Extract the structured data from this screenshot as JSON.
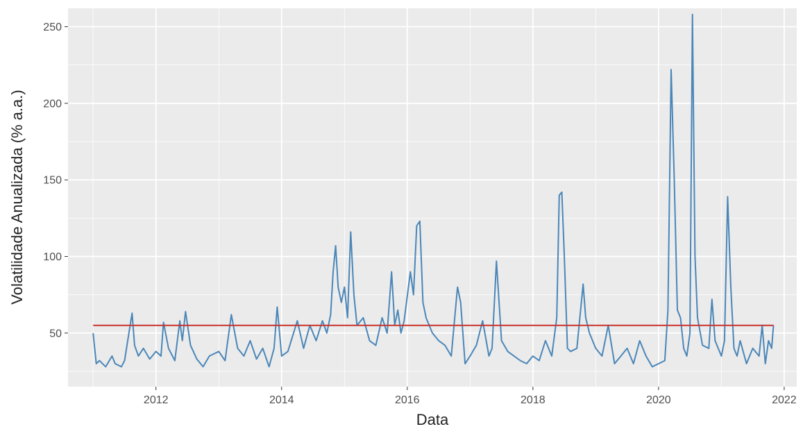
{
  "chart_data": {
    "type": "line",
    "title": "",
    "xlabel": "Data",
    "ylabel": "Volatilidade Anualizada (% a.a.)",
    "xlim": [
      2010.6,
      2022.2
    ],
    "ylim": [
      15,
      262
    ],
    "x_ticks": [
      2012,
      2014,
      2016,
      2018,
      2020,
      2022
    ],
    "y_ticks": [
      50,
      100,
      150,
      200,
      250
    ],
    "grid": true,
    "legend": "none",
    "colors": {
      "panel": "#ebebeb",
      "grid": "#ffffff",
      "series": "#4a86b8",
      "mean": "#c8322d",
      "text": "#4d4d4d"
    },
    "series": [
      {
        "x": [
          2011.0,
          2011.05,
          2011.1,
          2011.2,
          2011.3,
          2011.35,
          2011.45,
          2011.5,
          2011.55,
          2011.62,
          2011.66,
          2011.72,
          2011.8,
          2011.9,
          2012.0,
          2012.08,
          2012.12,
          2012.2,
          2012.3,
          2012.38,
          2012.42,
          2012.47,
          2012.55,
          2012.65,
          2012.75,
          2012.85,
          2013.0,
          2013.1,
          2013.2,
          2013.3,
          2013.4,
          2013.5,
          2013.6,
          2013.7,
          2013.8,
          2013.88,
          2013.93,
          2014.0,
          2014.1,
          2014.25,
          2014.35,
          2014.45,
          2014.55,
          2014.65,
          2014.72,
          2014.78,
          2014.82,
          2014.86,
          2014.9,
          2014.95,
          2015.0,
          2015.05,
          2015.1,
          2015.15,
          2015.2,
          2015.3,
          2015.4,
          2015.5,
          2015.6,
          2015.68,
          2015.75,
          2015.8,
          2015.85,
          2015.9,
          2015.95,
          2016.05,
          2016.1,
          2016.15,
          2016.2,
          2016.25,
          2016.3,
          2016.4,
          2016.5,
          2016.6,
          2016.7,
          2016.8,
          2016.85,
          2016.92,
          2017.0,
          2017.1,
          2017.2,
          2017.3,
          2017.35,
          2017.42,
          2017.5,
          2017.6,
          2017.7,
          2017.8,
          2017.9,
          2018.0,
          2018.1,
          2018.2,
          2018.3,
          2018.38,
          2018.42,
          2018.46,
          2018.5,
          2018.55,
          2018.6,
          2018.7,
          2018.8,
          2018.84,
          2018.9,
          2019.0,
          2019.1,
          2019.2,
          2019.3,
          2019.4,
          2019.5,
          2019.6,
          2019.7,
          2019.8,
          2019.9,
          2020.0,
          2020.1,
          2020.15,
          2020.2,
          2020.25,
          2020.3,
          2020.35,
          2020.4,
          2020.45,
          2020.5,
          2020.54,
          2020.58,
          2020.62,
          2020.7,
          2020.8,
          2020.85,
          2020.9,
          2021.0,
          2021.05,
          2021.1,
          2021.15,
          2021.2,
          2021.25,
          2021.3,
          2021.4,
          2021.5,
          2021.6,
          2021.65,
          2021.7,
          2021.75,
          2021.8,
          2021.83
        ],
        "values": [
          50,
          30,
          32,
          28,
          35,
          30,
          28,
          32,
          45,
          63,
          42,
          35,
          40,
          33,
          38,
          35,
          57,
          40,
          32,
          58,
          45,
          64,
          42,
          33,
          28,
          35,
          38,
          32,
          62,
          40,
          35,
          45,
          33,
          40,
          28,
          40,
          67,
          35,
          38,
          58,
          40,
          55,
          45,
          58,
          50,
          62,
          90,
          107,
          80,
          70,
          80,
          60,
          116,
          75,
          55,
          60,
          45,
          42,
          60,
          50,
          90,
          55,
          65,
          50,
          58,
          90,
          75,
          120,
          123,
          70,
          60,
          50,
          45,
          42,
          35,
          80,
          70,
          30,
          35,
          42,
          58,
          35,
          40,
          97,
          45,
          38,
          35,
          32,
          30,
          35,
          32,
          45,
          35,
          60,
          140,
          142,
          100,
          40,
          38,
          40,
          82,
          60,
          50,
          40,
          35,
          55,
          30,
          35,
          40,
          30,
          45,
          35,
          28,
          30,
          32,
          65,
          222,
          150,
          65,
          60,
          40,
          35,
          50,
          258,
          100,
          60,
          42,
          40,
          72,
          45,
          35,
          45,
          139,
          80,
          40,
          35,
          45,
          30,
          40,
          35,
          55,
          30,
          45,
          40,
          55
        ]
      },
      {
        "x": [
          2011.0,
          2021.83
        ],
        "values": [
          55,
          55
        ]
      }
    ]
  }
}
